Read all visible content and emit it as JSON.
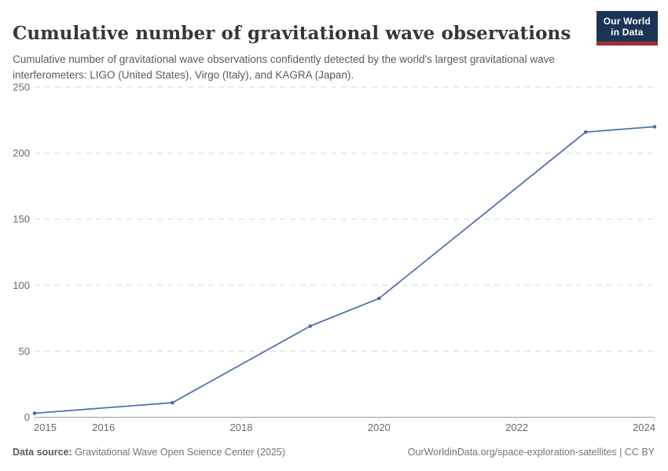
{
  "header": {
    "title": "Cumulative number of gravitational wave observations",
    "subtitle": "Cumulative number of gravitational wave observations confidently detected by the world's largest gravitational wave interferometers: LIGO (United States), Virgo (Italy), and KAGRA (Japan).",
    "logo": {
      "line1": "Our World",
      "line2": "in Data"
    }
  },
  "chart_data": {
    "type": "line",
    "title": "Cumulative number of gravitational wave observations",
    "x": [
      2015,
      2017,
      2019,
      2020,
      2023,
      2024
    ],
    "series": [
      {
        "name": "Cumulative gravitational wave observations",
        "values": [
          3,
          11,
          69,
          90,
          216,
          220
        ]
      }
    ],
    "xlabel": "",
    "ylabel": "",
    "xlim": [
      2015,
      2024
    ],
    "ylim": [
      0,
      250
    ],
    "yticks": [
      0,
      50,
      100,
      150,
      200,
      250
    ],
    "xticks": [
      2015,
      2016,
      2018,
      2020,
      2022,
      2024
    ],
    "grid": "horizontal-dashed",
    "legend": "none",
    "markers": true
  },
  "footer": {
    "source_label": "Data source:",
    "source_text": " Gravitational Wave Open Science Center (2025)",
    "attribution": "OurWorldinData.org/space-exploration-satellites | CC BY"
  },
  "colors": {
    "line": "#4c6aad",
    "grid": "#d9d9d9",
    "axis": "#a0a0a0",
    "tick": "#c8c8c8",
    "tick_label": "#6b6b6b",
    "logo_navy": "#1b3556",
    "logo_red": "#a42c33"
  }
}
